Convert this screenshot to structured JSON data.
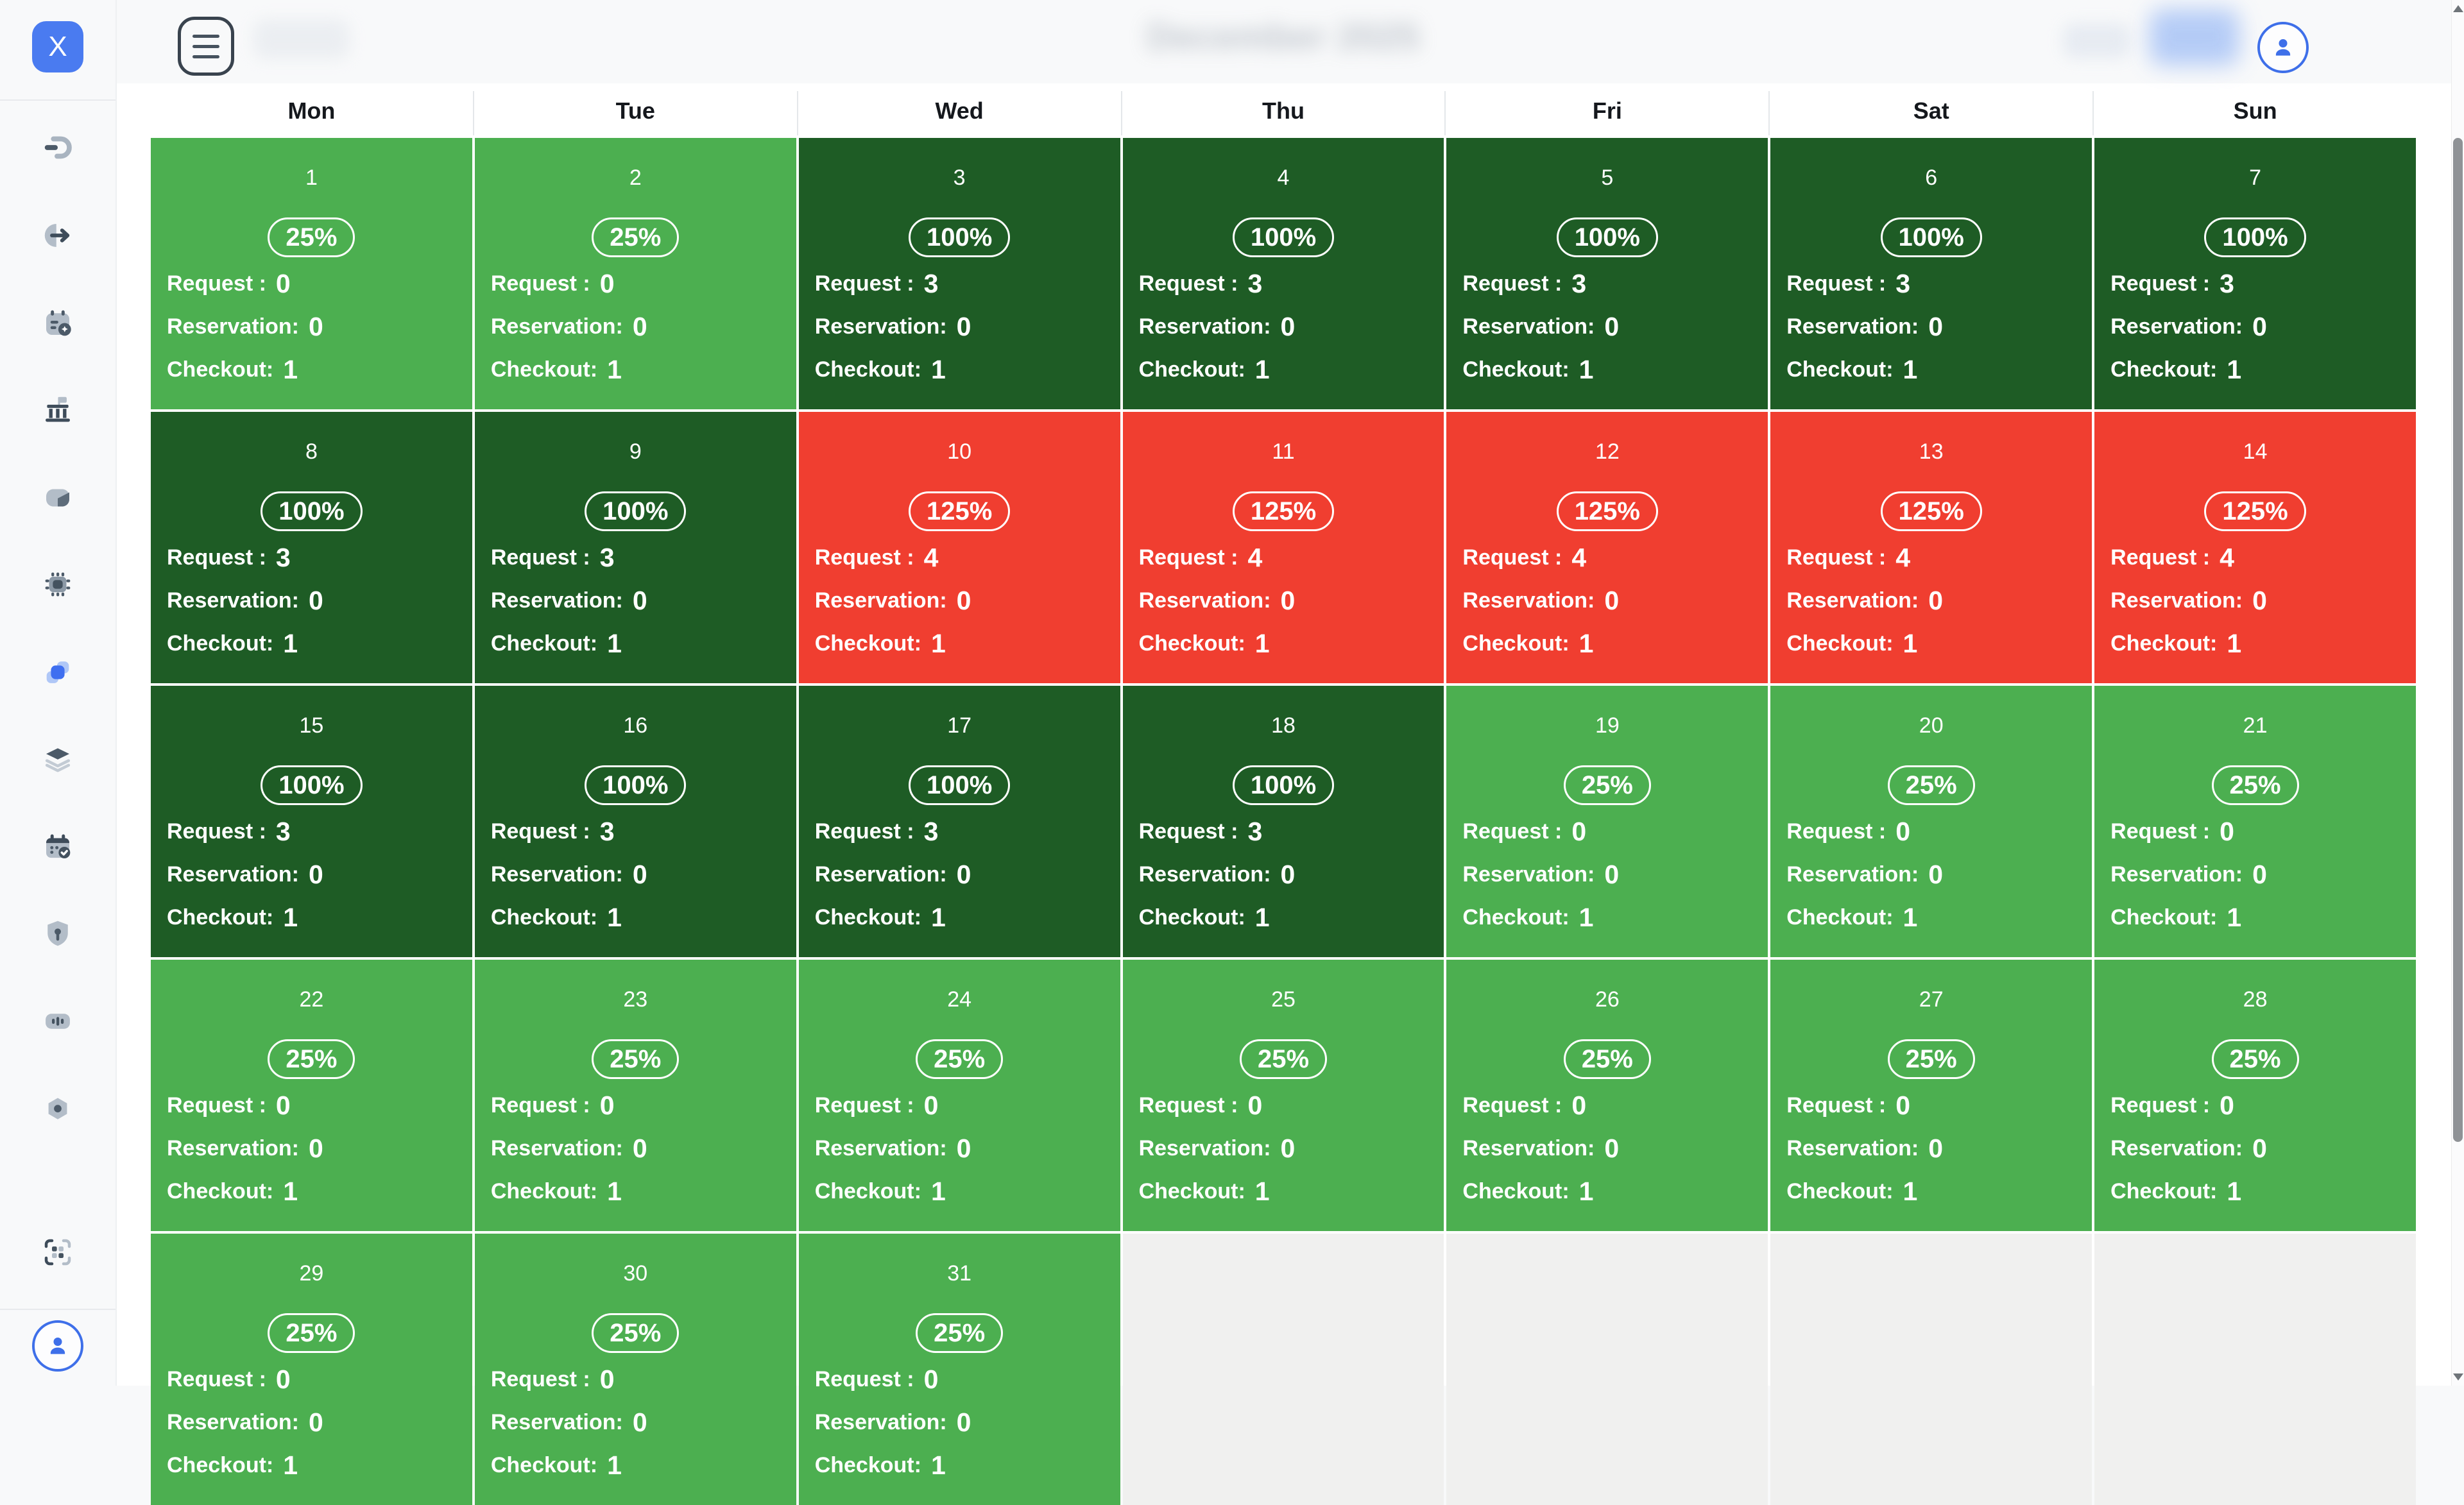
{
  "app": {
    "logo_text": "X",
    "accent_blue": "#4A7BF0"
  },
  "topbar": {
    "title": "December 2025"
  },
  "sidebar": {
    "items": [
      "dashboard",
      "check-in",
      "calendar-sparkle",
      "bank",
      "cube",
      "chip",
      "cards-active",
      "layers",
      "calendar-check",
      "shield",
      "sliders",
      "nut",
      "qr-scan"
    ]
  },
  "calendar": {
    "day_headers": [
      "Mon",
      "Tue",
      "Wed",
      "Thu",
      "Fri",
      "Sat",
      "Sun"
    ],
    "labels": {
      "request": "Request :",
      "reservation": "Reservation:",
      "checkout": "Checkout:"
    },
    "status_colors": {
      "low": "#4CAF50",
      "full": "#1E5C25",
      "over": "#F03E30",
      "empty": "#F0F0EF"
    },
    "trailing_empty_cells": 4,
    "days": [
      {
        "day": 1,
        "occupancy": "25%",
        "status": "low",
        "request": 0,
        "reservation": 0,
        "checkout": 1
      },
      {
        "day": 2,
        "occupancy": "25%",
        "status": "low",
        "request": 0,
        "reservation": 0,
        "checkout": 1
      },
      {
        "day": 3,
        "occupancy": "100%",
        "status": "full",
        "request": 3,
        "reservation": 0,
        "checkout": 1
      },
      {
        "day": 4,
        "occupancy": "100%",
        "status": "full",
        "request": 3,
        "reservation": 0,
        "checkout": 1
      },
      {
        "day": 5,
        "occupancy": "100%",
        "status": "full",
        "request": 3,
        "reservation": 0,
        "checkout": 1
      },
      {
        "day": 6,
        "occupancy": "100%",
        "status": "full",
        "request": 3,
        "reservation": 0,
        "checkout": 1
      },
      {
        "day": 7,
        "occupancy": "100%",
        "status": "full",
        "request": 3,
        "reservation": 0,
        "checkout": 1
      },
      {
        "day": 8,
        "occupancy": "100%",
        "status": "full",
        "request": 3,
        "reservation": 0,
        "checkout": 1
      },
      {
        "day": 9,
        "occupancy": "100%",
        "status": "full",
        "request": 3,
        "reservation": 0,
        "checkout": 1
      },
      {
        "day": 10,
        "occupancy": "125%",
        "status": "over",
        "request": 4,
        "reservation": 0,
        "checkout": 1
      },
      {
        "day": 11,
        "occupancy": "125%",
        "status": "over",
        "request": 4,
        "reservation": 0,
        "checkout": 1
      },
      {
        "day": 12,
        "occupancy": "125%",
        "status": "over",
        "request": 4,
        "reservation": 0,
        "checkout": 1
      },
      {
        "day": 13,
        "occupancy": "125%",
        "status": "over",
        "request": 4,
        "reservation": 0,
        "checkout": 1
      },
      {
        "day": 14,
        "occupancy": "125%",
        "status": "over",
        "request": 4,
        "reservation": 0,
        "checkout": 1
      },
      {
        "day": 15,
        "occupancy": "100%",
        "status": "full",
        "request": 3,
        "reservation": 0,
        "checkout": 1
      },
      {
        "day": 16,
        "occupancy": "100%",
        "status": "full",
        "request": 3,
        "reservation": 0,
        "checkout": 1
      },
      {
        "day": 17,
        "occupancy": "100%",
        "status": "full",
        "request": 3,
        "reservation": 0,
        "checkout": 1
      },
      {
        "day": 18,
        "occupancy": "100%",
        "status": "full",
        "request": 3,
        "reservation": 0,
        "checkout": 1
      },
      {
        "day": 19,
        "occupancy": "25%",
        "status": "low",
        "request": 0,
        "reservation": 0,
        "checkout": 1
      },
      {
        "day": 20,
        "occupancy": "25%",
        "status": "low",
        "request": 0,
        "reservation": 0,
        "checkout": 1
      },
      {
        "day": 21,
        "occupancy": "25%",
        "status": "low",
        "request": 0,
        "reservation": 0,
        "checkout": 1
      },
      {
        "day": 22,
        "occupancy": "25%",
        "status": "low",
        "request": 0,
        "reservation": 0,
        "checkout": 1
      },
      {
        "day": 23,
        "occupancy": "25%",
        "status": "low",
        "request": 0,
        "reservation": 0,
        "checkout": 1
      },
      {
        "day": 24,
        "occupancy": "25%",
        "status": "low",
        "request": 0,
        "reservation": 0,
        "checkout": 1
      },
      {
        "day": 25,
        "occupancy": "25%",
        "status": "low",
        "request": 0,
        "reservation": 0,
        "checkout": 1
      },
      {
        "day": 26,
        "occupancy": "25%",
        "status": "low",
        "request": 0,
        "reservation": 0,
        "checkout": 1
      },
      {
        "day": 27,
        "occupancy": "25%",
        "status": "low",
        "request": 0,
        "reservation": 0,
        "checkout": 1
      },
      {
        "day": 28,
        "occupancy": "25%",
        "status": "low",
        "request": 0,
        "reservation": 0,
        "checkout": 1
      },
      {
        "day": 29,
        "occupancy": "25%",
        "status": "low",
        "request": 0,
        "reservation": 0,
        "checkout": 1
      },
      {
        "day": 30,
        "occupancy": "25%",
        "status": "low",
        "request": 0,
        "reservation": 0,
        "checkout": 1
      },
      {
        "day": 31,
        "occupancy": "25%",
        "status": "low",
        "request": 0,
        "reservation": 0,
        "checkout": 1
      }
    ]
  }
}
